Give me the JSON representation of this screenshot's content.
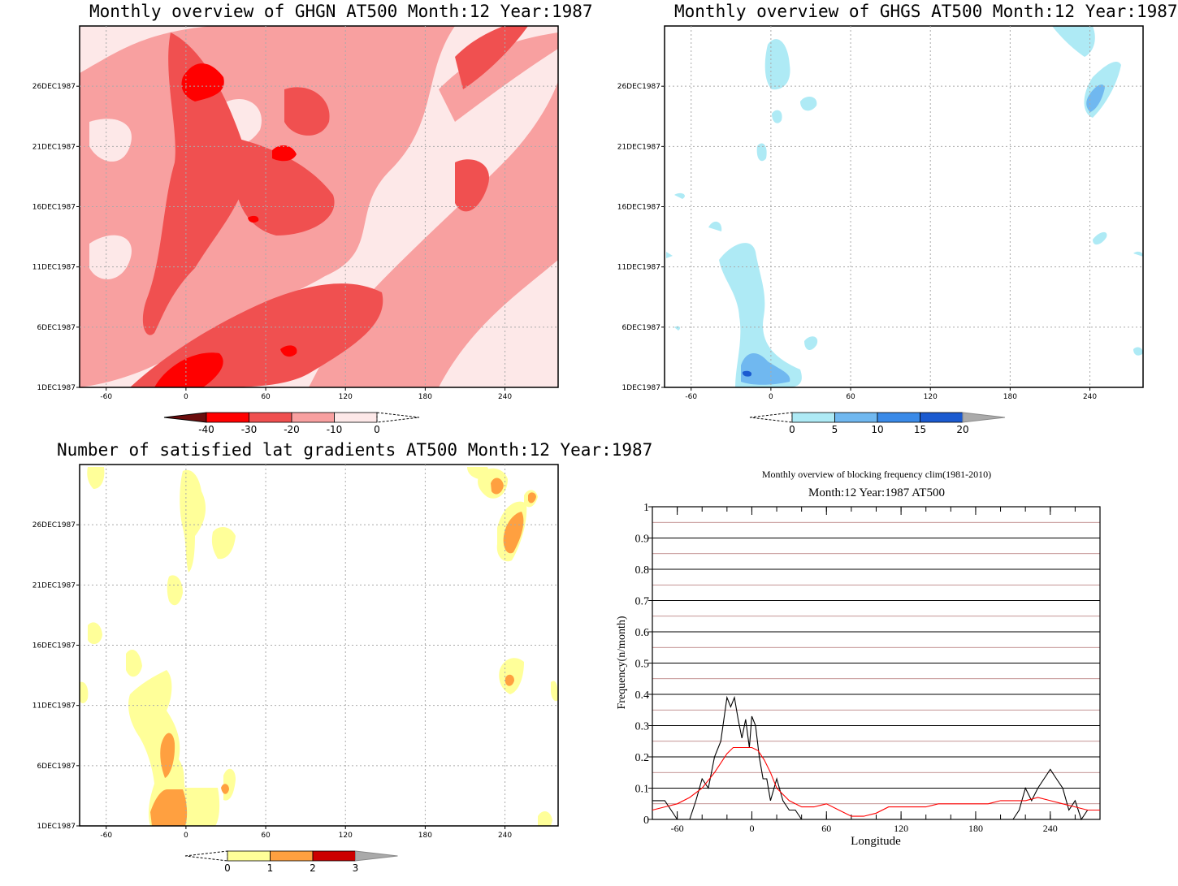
{
  "panels": {
    "ghgn": {
      "title": "Monthly overview of GHGN AT500 Month:12 Year:1987",
      "x_ticks": [
        "-60",
        "0",
        "60",
        "120",
        "180",
        "240"
      ],
      "y_ticks": [
        "1DEC1987",
        "6DEC1987",
        "11DEC1987",
        "16DEC1987",
        "21DEC1987",
        "26DEC1987"
      ],
      "colorbar": {
        "labels": [
          "-40",
          "-30",
          "-20",
          "-10",
          "0"
        ],
        "colors": [
          "#6b0d0d",
          "#ff0000",
          "#f05050",
          "#f8a0a0",
          "#fde8e8"
        ]
      }
    },
    "ghgs": {
      "title": "Monthly overview of GHGS AT500 Month:12 Year:1987",
      "x_ticks": [
        "-60",
        "0",
        "60",
        "120",
        "180",
        "240"
      ],
      "y_ticks": [
        "1DEC1987",
        "6DEC1987",
        "11DEC1987",
        "16DEC1987",
        "21DEC1987",
        "26DEC1987"
      ],
      "colorbar": {
        "labels": [
          "0",
          "5",
          "10",
          "15",
          "20"
        ],
        "colors": [
          "#aeeaf5",
          "#70b8f0",
          "#3a8ae8",
          "#1a5ad0",
          "#aaaaaa"
        ]
      }
    },
    "lat_gradients": {
      "title": "Number of satisfied lat gradients AT500 Month:12 Year:1987",
      "x_ticks": [
        "-60",
        "0",
        "60",
        "120",
        "180",
        "240"
      ],
      "y_ticks": [
        "1DEC1987",
        "6DEC1987",
        "11DEC1987",
        "16DEC1987",
        "21DEC1987",
        "26DEC1987"
      ],
      "colorbar": {
        "labels": [
          "0",
          "1",
          "2",
          "3"
        ],
        "colors": [
          "#ffff99",
          "#ffa040",
          "#cc0000",
          "#aaaaaa"
        ]
      }
    }
  },
  "chart_data": [
    {
      "type": "heatmap",
      "title": "Monthly overview of GHGN AT500 Month:12 Year:1987",
      "xlim": [
        -80,
        280
      ],
      "y_range": [
        "1DEC1987",
        "31DEC1987"
      ],
      "levels": [
        -40,
        -30,
        -20,
        -10,
        0
      ],
      "level_colors": {
        "-40": "#6b0d0d",
        "-30": "#ff0000",
        "-20": "#f05050",
        "-10": "#f8a0a0",
        "0": "#fde8e8"
      }
    },
    {
      "type": "heatmap",
      "title": "Monthly overview of GHGS AT500 Month:12 Year:1987",
      "xlim": [
        -80,
        280
      ],
      "y_range": [
        "1DEC1987",
        "31DEC1987"
      ],
      "levels": [
        0,
        5,
        10,
        15,
        20
      ]
    },
    {
      "type": "heatmap",
      "title": "Number of satisfied lat gradients AT500 Month:12 Year:1987",
      "xlim": [
        -80,
        280
      ],
      "y_range": [
        "1DEC1987",
        "31DEC1987"
      ],
      "levels": [
        0,
        1,
        2,
        3
      ]
    },
    {
      "type": "line",
      "title": "Monthly overview of blocking frequency clim(1981-2010)",
      "subtitle": "Month:12 Year:1987  AT500",
      "xlabel": "Longitude",
      "ylabel": "Frequency(n/month)",
      "xlim": [
        -80,
        280
      ],
      "ylim": [
        0,
        1
      ],
      "x_ticks": [
        "-60",
        "0",
        "60",
        "120",
        "180",
        "240"
      ],
      "y_ticks": [
        "0",
        "0.1",
        "0.2",
        "0.3",
        "0.4",
        "0.5",
        "0.6",
        "0.7",
        "0.8",
        "0.9",
        "1"
      ],
      "series": [
        {
          "color": "#000000",
          "x": [
            -80,
            -75,
            -70,
            -65,
            -60,
            -55,
            -50,
            -45,
            -40,
            -35,
            -30,
            -25,
            -20,
            -17,
            -14,
            -11,
            -8,
            -5,
            -2,
            0,
            3,
            6,
            9,
            12,
            15,
            20,
            25,
            30,
            35,
            40,
            210,
            215,
            220,
            225,
            230,
            235,
            240,
            245,
            250,
            255,
            260,
            265,
            270,
            275
          ],
          "y": [
            0.06,
            0.06,
            0.06,
            0.03,
            0,
            0,
            0,
            0.06,
            0.13,
            0.1,
            0.2,
            0.25,
            0.39,
            0.36,
            0.39,
            0.32,
            0.26,
            0.32,
            0.23,
            0.33,
            0.3,
            0.2,
            0.13,
            0.13,
            0.06,
            0.13,
            0.06,
            0.03,
            0.03,
            0,
            0,
            0.03,
            0.1,
            0.06,
            0.1,
            0.13,
            0.16,
            0.13,
            0.1,
            0.03,
            0.06,
            0,
            0.03,
            0.03
          ]
        },
        {
          "color": "#ff0000",
          "x": [
            -80,
            -70,
            -60,
            -50,
            -40,
            -30,
            -20,
            -15,
            -10,
            -5,
            0,
            5,
            10,
            15,
            20,
            30,
            40,
            50,
            60,
            70,
            80,
            90,
            100,
            110,
            120,
            130,
            140,
            150,
            160,
            170,
            180,
            190,
            200,
            210,
            220,
            230,
            240,
            250,
            260,
            270,
            280
          ],
          "y": [
            0.03,
            0.04,
            0.05,
            0.07,
            0.1,
            0.15,
            0.21,
            0.23,
            0.23,
            0.23,
            0.23,
            0.22,
            0.19,
            0.15,
            0.1,
            0.06,
            0.04,
            0.04,
            0.05,
            0.03,
            0.01,
            0.01,
            0.02,
            0.04,
            0.04,
            0.04,
            0.04,
            0.05,
            0.05,
            0.05,
            0.05,
            0.05,
            0.06,
            0.06,
            0.06,
            0.07,
            0.06,
            0.05,
            0.04,
            0.03,
            0.03
          ]
        }
      ]
    }
  ]
}
